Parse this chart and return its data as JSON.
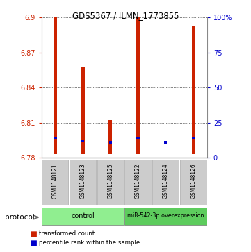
{
  "title": "GDS5367 / ILMN_1773855",
  "samples": [
    "GSM1148121",
    "GSM1148123",
    "GSM1148125",
    "GSM1148122",
    "GSM1148124",
    "GSM1148126"
  ],
  "red_top": [
    6.9,
    6.858,
    6.812,
    6.9,
    6.783,
    6.893
  ],
  "red_bottom": [
    6.783,
    6.783,
    6.783,
    6.783,
    6.783,
    6.783
  ],
  "blue_value": [
    6.797,
    6.794,
    6.793,
    6.797,
    6.793,
    6.797
  ],
  "ylim_left": [
    6.78,
    6.9
  ],
  "ylim_right": [
    0,
    100
  ],
  "yticks_left": [
    6.78,
    6.81,
    6.84,
    6.87,
    6.9
  ],
  "yticks_right": [
    0,
    25,
    50,
    75,
    100
  ],
  "bar_color": "#cc2200",
  "blue_color": "#0000cc",
  "bar_width": 0.12,
  "ctrl_color": "#90EE90",
  "mir_color": "#5dcc5d"
}
